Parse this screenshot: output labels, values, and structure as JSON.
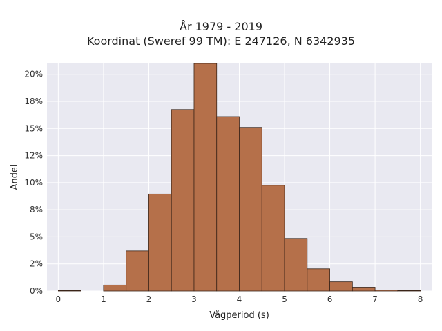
{
  "chart_data": {
    "type": "bar",
    "title_lines": [
      "År 1979 - 2019",
      "Koordinat (Sweref 99 TM): E 247126, N 6342935"
    ],
    "xlabel": "Vågperiod (s)",
    "ylabel": "Andel",
    "xlim": [
      -0.25,
      8.25
    ],
    "ylim": [
      0,
      0.21
    ],
    "x_ticks": [
      0,
      1,
      2,
      3,
      4,
      5,
      6,
      7,
      8
    ],
    "y_ticks": [
      0,
      0.025,
      0.05,
      0.075,
      0.1,
      0.125,
      0.15,
      0.175,
      0.2
    ],
    "y_tick_labels": [
      "0%",
      "2%",
      "5%",
      "8%",
      "10%",
      "12%",
      "15%",
      "18%",
      "20%"
    ],
    "bin_width": 0.5,
    "bins": [
      {
        "x0": 0.0,
        "value": 0.0005
      },
      {
        "x0": 0.5,
        "value": 0.0
      },
      {
        "x0": 1.0,
        "value": 0.0055
      },
      {
        "x0": 1.5,
        "value": 0.037
      },
      {
        "x0": 2.0,
        "value": 0.0895
      },
      {
        "x0": 2.5,
        "value": 0.1675
      },
      {
        "x0": 3.0,
        "value": 0.21
      },
      {
        "x0": 3.5,
        "value": 0.161
      },
      {
        "x0": 4.0,
        "value": 0.151
      },
      {
        "x0": 4.5,
        "value": 0.0975
      },
      {
        "x0": 5.0,
        "value": 0.0485
      },
      {
        "x0": 5.5,
        "value": 0.0205
      },
      {
        "x0": 6.0,
        "value": 0.0085
      },
      {
        "x0": 6.5,
        "value": 0.0035
      },
      {
        "x0": 7.0,
        "value": 0.001
      },
      {
        "x0": 7.5,
        "value": 0.0005
      }
    ],
    "bar_color": "#b5704a",
    "bar_edge_color": "#3a2418",
    "plot_background": "#e9e9f1",
    "grid": true,
    "grid_color": "#ffffff"
  }
}
